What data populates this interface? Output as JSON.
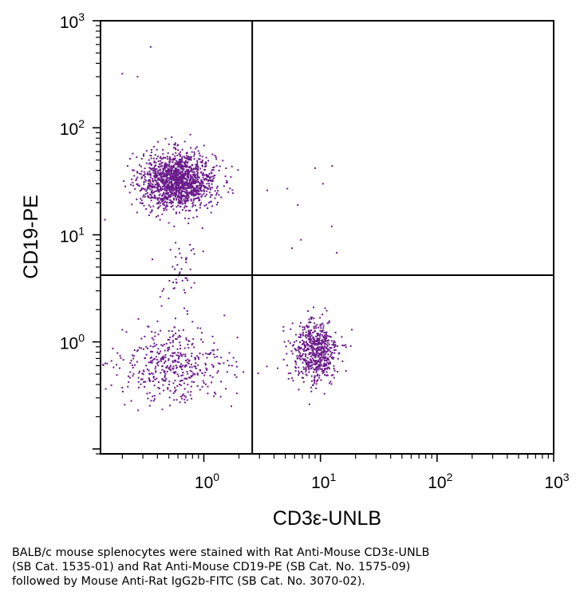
{
  "chart_data": {
    "type": "scatter",
    "xlabel": "CD3ε-UNLB",
    "ylabel": "CD19-PE",
    "xscale": "log",
    "yscale": "log",
    "xlim": [
      0.13,
      1000
    ],
    "ylim": [
      0.09,
      1000
    ],
    "x_ticks": [
      {
        "base": "10",
        "exp": "0",
        "value": 1
      },
      {
        "base": "10",
        "exp": "1",
        "value": 10
      },
      {
        "base": "10",
        "exp": "2",
        "value": 100
      },
      {
        "base": "10",
        "exp": "3",
        "value": 1000
      }
    ],
    "y_ticks": [
      {
        "base": "10",
        "exp": "0",
        "value": 1
      },
      {
        "base": "10",
        "exp": "1",
        "value": 10
      },
      {
        "base": "10",
        "exp": "2",
        "value": 100
      },
      {
        "base": "10",
        "exp": "3",
        "value": 1000
      }
    ],
    "gates": {
      "x": 2.6,
      "y": 4.2
    },
    "point_color": "#6a1b8a",
    "populations": [
      {
        "x_center": 0.6,
        "y_center": 32,
        "x_spread_log10": 0.16,
        "y_spread_log10": 0.13,
        "count": 1500
      },
      {
        "x_center": 9.0,
        "y_center": 0.8,
        "x_spread_log10": 0.1,
        "y_spread_log10": 0.15,
        "count": 600
      },
      {
        "x_center": 0.55,
        "y_center": 0.6,
        "x_spread_log10": 0.23,
        "y_spread_log10": 0.17,
        "count": 450
      },
      {
        "x_center": 0.65,
        "y_center": 4.5,
        "x_spread_log10": 0.08,
        "y_spread_log10": 0.2,
        "count": 50
      }
    ],
    "outliers": [
      {
        "x": 0.35,
        "y": 570
      },
      {
        "x": 0.2,
        "y": 320
      },
      {
        "x": 0.27,
        "y": 300
      },
      {
        "x": 9.0,
        "y": 42
      },
      {
        "x": 12.6,
        "y": 44
      },
      {
        "x": 10.5,
        "y": 30
      },
      {
        "x": 3.5,
        "y": 26
      },
      {
        "x": 5.2,
        "y": 27
      },
      {
        "x": 6.4,
        "y": 19
      },
      {
        "x": 6.8,
        "y": 9
      },
      {
        "x": 12.5,
        "y": 12
      },
      {
        "x": 5.7,
        "y": 7.5
      },
      {
        "x": 13.8,
        "y": 6.8
      }
    ]
  },
  "caption": {
    "line1": "BALB/c mouse splenocytes were stained with Rat Anti-Mouse CD3ε-UNLB",
    "line2": "(SB Cat. 1535-01) and Rat Anti-Mouse CD19-PE (SB Cat. No. 1575-09)",
    "line3": "followed by Mouse Anti-Rat IgG2b-FITC (SB Cat. No. 3070-02)."
  }
}
